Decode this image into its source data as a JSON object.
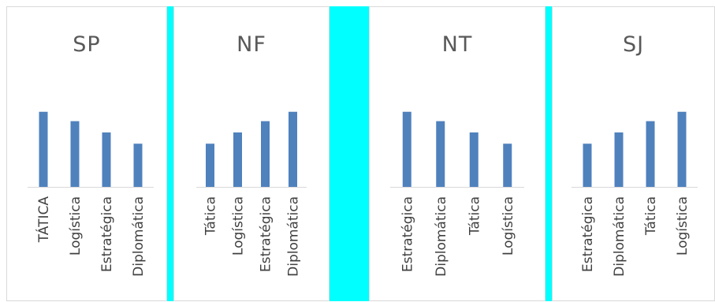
{
  "colors": {
    "bar": "#4f81bd",
    "accent": "#00ffff",
    "axis": "#d9d9d9",
    "text": "#595959"
  },
  "chart_data": [
    {
      "type": "bar",
      "title": "SP",
      "categories": [
        "TÁTICA",
        "Logística",
        "Estratégica",
        "Diplomática"
      ],
      "values": [
        4,
        3.5,
        2.9,
        2.3
      ],
      "ylim": [
        0,
        4.2
      ]
    },
    {
      "type": "bar",
      "title": "NF",
      "categories": [
        "Tática",
        "Logística",
        "Estratégica",
        "Diplomática"
      ],
      "values": [
        2.3,
        2.9,
        3.5,
        4
      ],
      "ylim": [
        0,
        4.2
      ]
    },
    {
      "type": "bar",
      "title": "NT",
      "categories": [
        "Estratégica",
        "Diplomática",
        "Tática",
        "Logística"
      ],
      "values": [
        4,
        3.5,
        2.9,
        2.3
      ],
      "ylim": [
        0,
        4.2
      ]
    },
    {
      "type": "bar",
      "title": "SJ",
      "categories": [
        "Estratégica",
        "Diplomática",
        "Tática",
        "Logística"
      ],
      "values": [
        2.3,
        2.9,
        3.5,
        4
      ],
      "ylim": [
        0,
        4.2
      ]
    }
  ]
}
